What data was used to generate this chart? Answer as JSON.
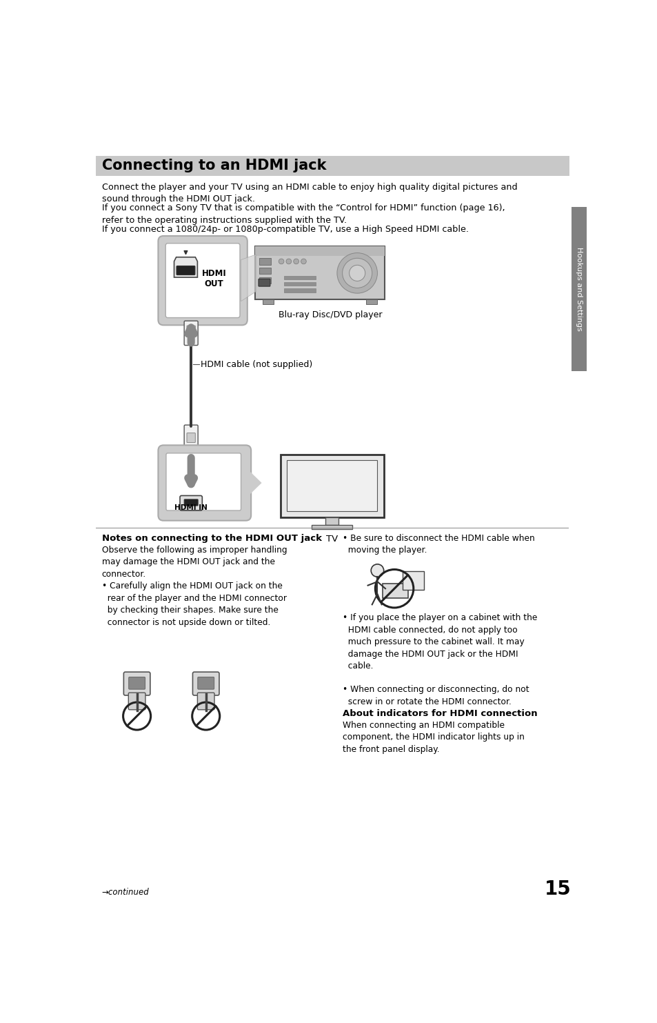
{
  "title": "Connecting to an HDMI jack",
  "title_bg": "#c8c8c8",
  "page_bg": "#ffffff",
  "body_text_1": "Connect the player and your TV using an HDMI cable to enjoy high quality digital pictures and\nsound through the HDMI OUT jack.",
  "body_text_2": "If you connect a Sony TV that is compatible with the “Control for HDMI” function (page 16),\nrefer to the operating instructions supplied with the TV.",
  "body_text_3": "If you connect a 1080/24p- or 1080p-compatible TV, use a High Speed HDMI cable.",
  "label_bluray": "Blu-ray Disc/DVD player",
  "label_hdmi_cable": "HDMI cable (not supplied)",
  "label_tv": "TV",
  "label_hdmi_out": "HDMI\nOUT",
  "label_hdmi_in": "HDMI IN",
  "sidebar_text": "Hookups and Settings",
  "sidebar_bg": "#808080",
  "notes_title_1": "Notes on connecting to the HDMI OUT jack",
  "notes_body_1": "Observe the following as improper handling\nmay damage the HDMI OUT jack and the\nconnector.",
  "notes_bullet_1": "• Carefully align the HDMI OUT jack on the\n  rear of the player and the HDMI connector\n  by checking their shapes. Make sure the\n  connector is not upside down or tilted.",
  "notes_bullet_2": "• Be sure to disconnect the HDMI cable when\n  moving the player.",
  "notes_bullet_3": "• If you place the player on a cabinet with the\n  HDMI cable connected, do not apply too\n  much pressure to the cabinet wall. It may\n  damage the HDMI OUT jack or the HDMI\n  cable.",
  "notes_bullet_4": "• When connecting or disconnecting, do not\n  screw in or rotate the HDMI connector.",
  "about_title": "About indicators for HDMI connection",
  "about_body": "When connecting an HDMI compatible\ncomponent, the HDMI indicator lights up in\nthe front panel display.",
  "continued_text": "→continued",
  "page_number": "15",
  "font_color": "#000000"
}
